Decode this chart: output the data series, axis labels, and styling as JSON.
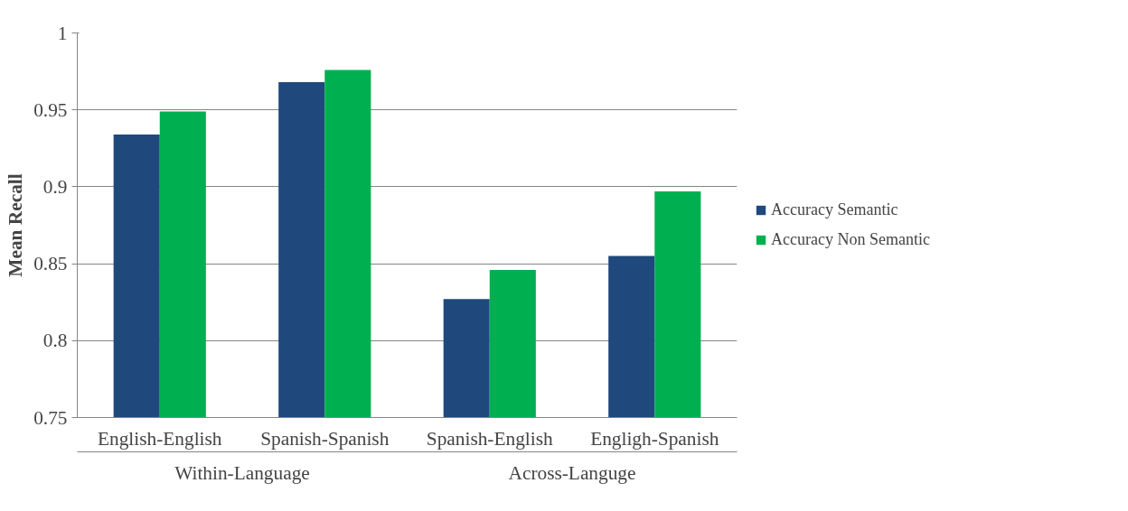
{
  "chart_data": {
    "type": "bar",
    "ylabel": "Mean Recall",
    "categories": [
      "English-English",
      "Spanish-Spanish",
      "Spanish-English",
      "Engligh-Spanish"
    ],
    "series": [
      {
        "name": "Accuracy Semantic",
        "color": "#1f497d",
        "values": [
          0.934,
          0.968,
          0.827,
          0.855
        ]
      },
      {
        "name": "Accuracy Non Semantic",
        "color": "#00b050",
        "values": [
          0.949,
          0.976,
          0.846,
          0.897
        ]
      }
    ],
    "annotations": [
      "Within-Language",
      "Across-Languge"
    ],
    "ylim": [
      0.75,
      1
    ],
    "yticks": [
      0.75,
      0.8,
      0.85,
      0.9,
      0.95,
      1
    ],
    "grid": "y",
    "legend": "right"
  }
}
